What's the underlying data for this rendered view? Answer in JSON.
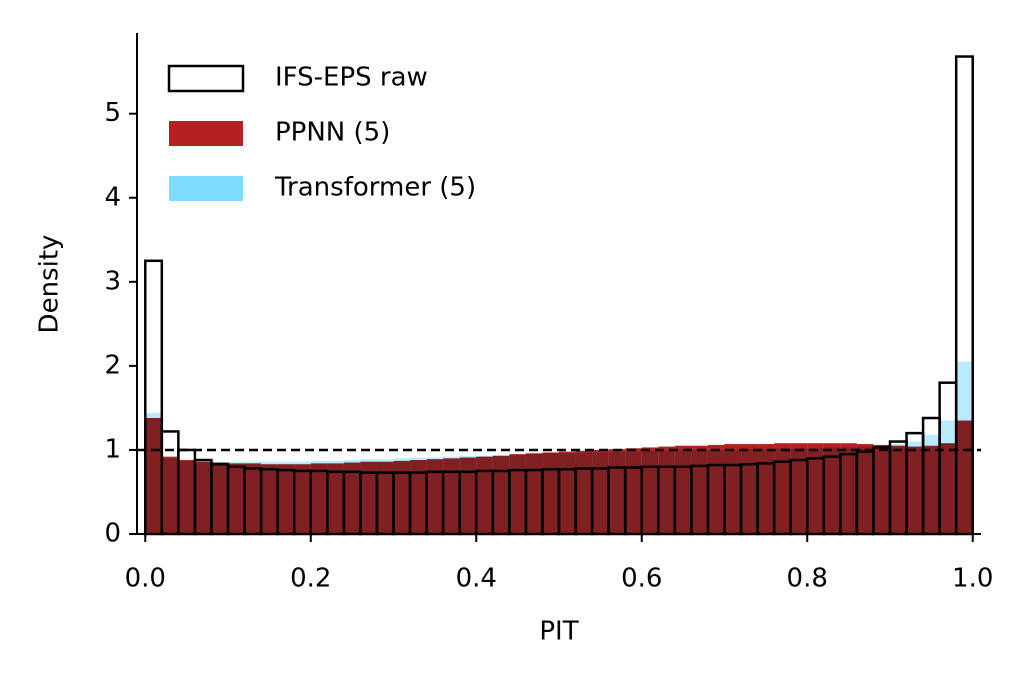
{
  "chart_data": {
    "type": "histogram",
    "xlabel": "PIT",
    "ylabel": "Density",
    "bins": [
      0,
      0.02,
      0.04,
      0.06,
      0.08,
      0.1,
      0.12,
      0.14,
      0.16,
      0.18,
      0.2,
      0.22,
      0.24,
      0.26,
      0.28,
      0.3,
      0.32,
      0.34,
      0.36,
      0.38,
      0.4,
      0.42,
      0.44,
      0.46,
      0.48,
      0.5,
      0.52,
      0.54,
      0.56,
      0.58,
      0.6,
      0.62,
      0.64,
      0.66,
      0.68,
      0.7,
      0.72,
      0.74,
      0.76,
      0.78,
      0.8,
      0.82,
      0.84,
      0.86,
      0.88,
      0.9,
      0.92,
      0.94,
      0.96,
      0.98,
      1.0
    ],
    "series": [
      {
        "name": "IFS-EPS raw",
        "color": "#000000",
        "histtype": "step",
        "values": [
          3.25,
          1.22,
          1.0,
          0.88,
          0.83,
          0.8,
          0.78,
          0.77,
          0.76,
          0.75,
          0.75,
          0.74,
          0.74,
          0.73,
          0.73,
          0.73,
          0.73,
          0.74,
          0.74,
          0.74,
          0.75,
          0.75,
          0.76,
          0.76,
          0.77,
          0.77,
          0.78,
          0.78,
          0.79,
          0.79,
          0.8,
          0.8,
          0.8,
          0.81,
          0.82,
          0.82,
          0.83,
          0.84,
          0.86,
          0.88,
          0.9,
          0.92,
          0.95,
          0.98,
          1.03,
          1.1,
          1.2,
          1.38,
          1.8,
          5.68
        ]
      },
      {
        "name": "PPNN (5)",
        "color": "#b22222",
        "histtype": "filled",
        "values": [
          1.38,
          0.92,
          0.88,
          0.86,
          0.85,
          0.84,
          0.84,
          0.83,
          0.83,
          0.83,
          0.84,
          0.84,
          0.85,
          0.86,
          0.86,
          0.87,
          0.88,
          0.89,
          0.9,
          0.91,
          0.92,
          0.93,
          0.95,
          0.96,
          0.97,
          0.98,
          0.99,
          1.0,
          1.01,
          1.02,
          1.03,
          1.04,
          1.05,
          1.05,
          1.06,
          1.07,
          1.07,
          1.07,
          1.08,
          1.08,
          1.08,
          1.08,
          1.08,
          1.07,
          1.06,
          1.05,
          1.04,
          1.05,
          1.08,
          1.35
        ]
      },
      {
        "name": "Transformer (5)",
        "color": "#7fdbff",
        "histtype": "filled",
        "values": [
          1.44,
          0.9,
          0.87,
          0.86,
          0.86,
          0.86,
          0.86,
          0.86,
          0.86,
          0.86,
          0.87,
          0.87,
          0.88,
          0.89,
          0.89,
          0.9,
          0.91,
          0.91,
          0.92,
          0.93,
          0.93,
          0.94,
          0.94,
          0.95,
          0.96,
          0.96,
          0.97,
          0.97,
          0.98,
          0.98,
          0.99,
          0.99,
          1.0,
          1.0,
          1.0,
          1.0,
          1.01,
          1.01,
          1.02,
          1.02,
          1.02,
          1.03,
          1.03,
          1.04,
          1.05,
          1.07,
          1.1,
          1.18,
          1.35,
          2.05
        ]
      }
    ],
    "hline": 1,
    "xlim": [
      -0.01,
      1.01
    ],
    "ylim": [
      0,
      5.96
    ],
    "xticks": [
      {
        "value": 0,
        "label": "0.0"
      },
      0.2,
      0.4,
      0.6,
      0.8,
      {
        "value": 1,
        "label": "1.0"
      }
    ],
    "yticks": [
      0,
      1,
      2,
      3,
      4,
      5
    ],
    "legend": "upper-left"
  }
}
